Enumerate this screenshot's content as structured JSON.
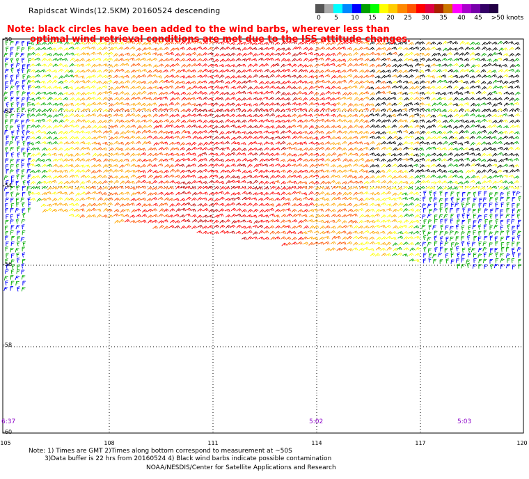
{
  "title": "Rapidscat Winds(12.5KM) 20160524 descending",
  "note_lines": [
    "Note: black circles have been added to the wind barbs, wherever less than",
    "optimal wind retrieval conditions are met due to the ISS attitude changes."
  ],
  "color_scale": {
    "labels": [
      "0",
      "5",
      "10",
      "15",
      "20",
      "25",
      "30",
      "35",
      "40",
      "45",
      ">50 knots"
    ],
    "colors": [
      "#555555",
      "#aaaaaa",
      "#00ffff",
      "#0088ff",
      "#0000ff",
      "#00a000",
      "#00ff00",
      "#ffff00",
      "#ffcc00",
      "#ff8800",
      "#ff5500",
      "#ff0000",
      "#dd0044",
      "#aa2200",
      "#cc7700",
      "#ff00ff",
      "#aa00cc",
      "#7700aa",
      "#330066",
      "#220044"
    ]
  },
  "lat_labels": [
    "-50",
    "-52",
    "-54",
    "-56",
    "-58",
    "-60"
  ],
  "lon_labels": [
    "105",
    "108",
    "111",
    "114",
    "117",
    "120"
  ],
  "time_labels": [
    "6:37",
    "5:02",
    "5:03"
  ],
  "footnotes": [
    "Note: 1) Times are GMT 2)Times along bottom correspond to measurement at ~50S",
    "3)Data buffer is 22 hrs from 20160524 4) Black wind barbs indicate possible contamination",
    "NOAA/NESDIS/Center for Satellite Applications and Research"
  ],
  "barb_palette": {
    "calm": "#0000ff",
    "light": "#00aa00",
    "moderate": "#ffff00",
    "fresh": "#ffa500",
    "strong": "#ff5500",
    "gale": "#ff0000",
    "storm": "#bb0000",
    "extreme": "#cc00cc",
    "contaminated": "#000000"
  }
}
